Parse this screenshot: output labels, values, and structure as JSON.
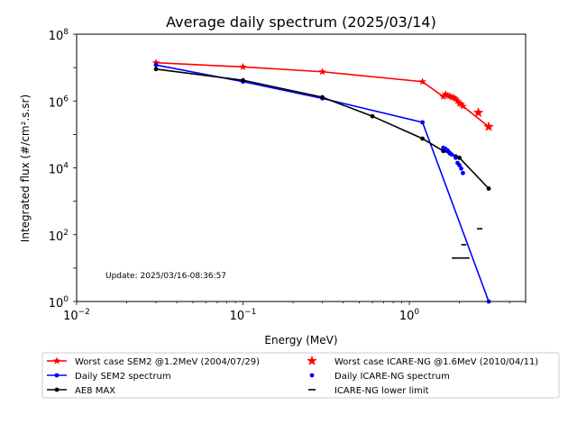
{
  "chart_data": {
    "type": "line",
    "title": "Average daily spectrum (2025/03/14)",
    "xlabel": "Energy (MeV)",
    "ylabel": "Integrated flux (#/cm².s.sr)",
    "x_scale": "log",
    "y_scale": "log",
    "xlim": [
      0.01,
      5
    ],
    "ylim": [
      1,
      100000000
    ],
    "x_ticks": [
      {
        "value": 0.01,
        "base": "10",
        "exp": "−2"
      },
      {
        "value": 0.1,
        "base": "10",
        "exp": "−1"
      },
      {
        "value": 1,
        "base": "10",
        "exp": "0"
      }
    ],
    "y_ticks": [
      {
        "value": 1,
        "base": "10",
        "exp": "0"
      },
      {
        "value": 100,
        "base": "10",
        "exp": "2"
      },
      {
        "value": 10000,
        "base": "10",
        "exp": "4"
      },
      {
        "value": 1000000,
        "base": "10",
        "exp": "6"
      },
      {
        "value": 100000000,
        "base": "10",
        "exp": "8"
      }
    ],
    "grid": false,
    "annotation": "Update: 2025/03/16-08:36:57",
    "legend_position": "below plot, two columns",
    "series": [
      {
        "name": "Worst case SEM2 @1.2MeV (2004/07/29)",
        "color": "#ff0000",
        "style": "line",
        "marker": "star",
        "x": [
          0.03,
          0.1,
          0.3,
          1.2,
          1.6,
          1.65,
          1.7,
          1.75,
          1.8,
          1.85,
          1.9,
          1.95,
          2.0,
          2.05,
          2.1,
          3.0
        ],
        "y": [
          14000000,
          10500000,
          7500000,
          3800000,
          1350000,
          1600000,
          1450000,
          1400000,
          1300000,
          1250000,
          1150000,
          1000000,
          850000,
          800000,
          700000,
          170000
        ]
      },
      {
        "name": "Daily SEM2 spectrum",
        "color": "#0000ff",
        "style": "line",
        "marker": "dot",
        "x": [
          0.03,
          0.1,
          0.3,
          1.2,
          3.0
        ],
        "y": [
          12000000,
          3800000,
          1200000,
          230000,
          1
        ]
      },
      {
        "name": "AE8 MAX",
        "color": "#000000",
        "style": "line",
        "marker": "dot",
        "x": [
          0.03,
          0.1,
          0.3,
          0.6,
          1.2,
          1.6,
          1.75,
          1.9,
          2.0,
          3.0
        ],
        "y": [
          9000000,
          4200000,
          1300000,
          350000,
          75000,
          32000,
          27000,
          22000,
          20000,
          2400
        ]
      },
      {
        "name": "Worst case ICARE-NG @1.6MeV (2010/04/11)",
        "color": "#ff0000",
        "style": "scatter",
        "marker": "star",
        "x": [
          2.6,
          3.0
        ],
        "y": [
          450000,
          170000
        ]
      },
      {
        "name": "Daily ICARE-NG spectrum",
        "color": "#0000ff",
        "style": "scatter",
        "marker": "dot",
        "x": [
          1.6,
          1.65,
          1.7,
          1.75,
          1.8,
          1.9,
          1.95,
          2.0,
          2.05,
          2.1
        ],
        "y": [
          40000,
          37000,
          33000,
          28000,
          25000,
          20000,
          14000,
          12000,
          9500,
          7000
        ]
      },
      {
        "name": "ICARE-NG lower limit",
        "color": "#000000",
        "style": "hline",
        "segments": [
          {
            "x1": 1.8,
            "x2": 2.3,
            "y": 20
          },
          {
            "x1": 2.05,
            "x2": 2.2,
            "y": 50
          },
          {
            "x1": 2.55,
            "x2": 2.75,
            "y": 150
          }
        ]
      }
    ]
  }
}
